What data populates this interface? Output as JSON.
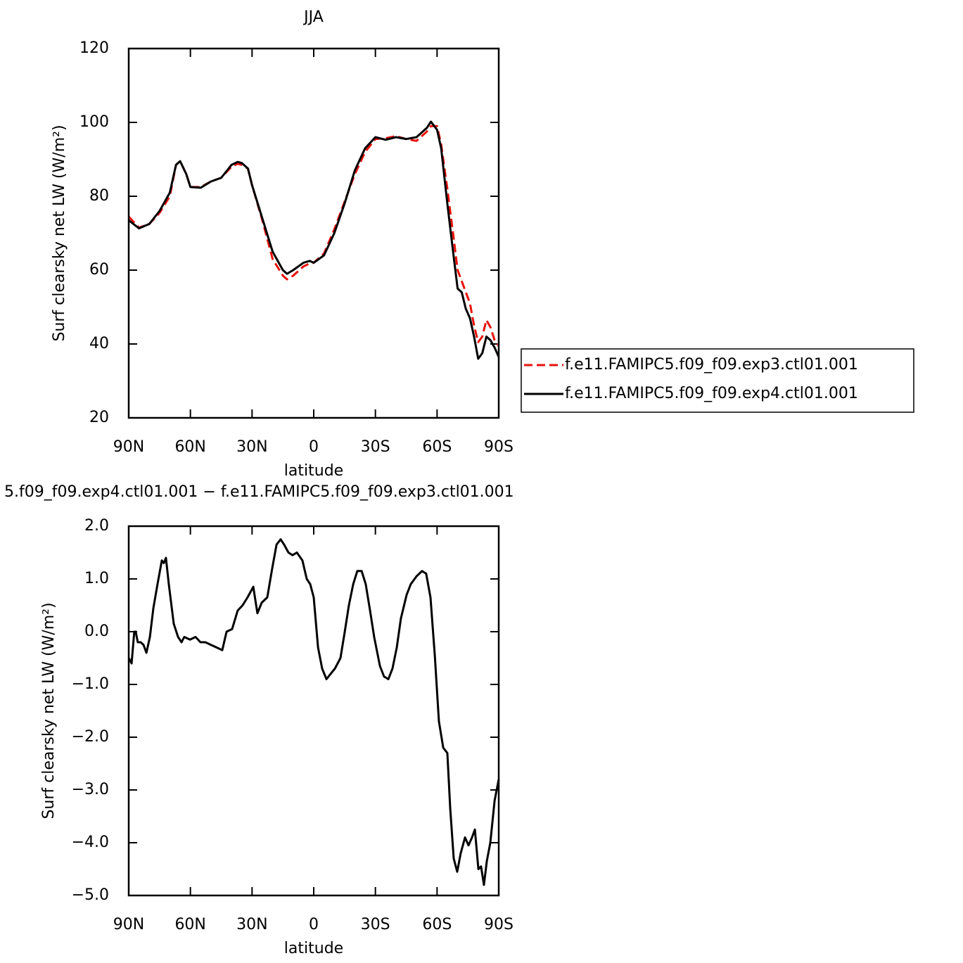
{
  "chart_data": [
    {
      "type": "line",
      "title": "JJA",
      "xlabel": "latitude",
      "ylabel": "Surf clearsky net LW (W/m²)",
      "x": [
        90,
        85,
        80,
        75,
        70,
        67,
        65,
        62,
        60,
        55,
        50,
        45,
        40,
        37,
        35,
        32,
        30,
        25,
        20,
        15,
        13,
        10,
        5,
        2,
        0,
        -5,
        -10,
        -15,
        -20,
        -25,
        -30,
        -35,
        -40,
        -45,
        -50,
        -55,
        -57,
        -60,
        -62,
        -65,
        -68,
        -70,
        -72,
        -74,
        -76,
        -78,
        -80,
        -82,
        -84,
        -86,
        -88,
        -90
      ],
      "series": [
        {
          "name": "f.e11.FAMIPC5.f09_f09.exp3.ctl01.001",
          "color": "#e8120c",
          "dashed": true,
          "values": [
            74.5,
            71.5,
            72.5,
            75.5,
            80,
            88.5,
            89.5,
            86,
            82.5,
            82.5,
            84,
            85,
            88,
            88.8,
            88.5,
            87.5,
            83,
            73.5,
            63,
            58.5,
            57.5,
            58.5,
            61,
            61.8,
            62,
            64.5,
            71,
            78.5,
            86,
            92,
            95.5,
            95.7,
            96.3,
            95.5,
            95,
            97.5,
            99,
            99,
            94,
            82,
            69,
            60,
            57,
            54,
            51,
            45,
            40.5,
            42,
            46.5,
            44.5,
            41,
            39.5
          ]
        },
        {
          "name": "f.e11.FAMIPC5.f09_f09.exp4.ctl01.001",
          "color": "#000000",
          "dashed": false,
          "values": [
            73.5,
            71.3,
            72.5,
            76,
            81,
            88.5,
            89.5,
            86,
            82.5,
            82.3,
            84,
            85,
            88.5,
            89.3,
            89,
            87.5,
            83,
            74,
            65,
            60,
            59,
            60,
            62,
            62.5,
            62,
            64,
            70,
            78,
            87,
            93,
            96,
            95.3,
            96,
            95.5,
            96,
            98.5,
            100.2,
            98,
            93,
            78,
            64,
            55,
            54,
            49.5,
            47,
            42,
            36,
            37.5,
            42,
            41,
            39,
            36.5
          ]
        }
      ],
      "xlim": [
        90,
        -90
      ],
      "xticks": [
        {
          "value": 90,
          "label": "90N"
        },
        {
          "value": 60,
          "label": "60N"
        },
        {
          "value": 30,
          "label": "30N"
        },
        0,
        {
          "value": -30,
          "label": "30S"
        },
        {
          "value": -60,
          "label": "60S"
        },
        {
          "value": -90,
          "label": "90S"
        }
      ],
      "ylim": [
        20,
        120
      ],
      "yticks": [
        20,
        40,
        60,
        80,
        100,
        120
      ],
      "legend": "right"
    },
    {
      "type": "line",
      "title": "5.f09_f09.exp4.ctl01.001 − f.e11.FAMIPC5.f09_f09.exp3.ctl01.001",
      "xlabel": "latitude",
      "ylabel": "Surf clearsky net LW (W/m²)",
      "x": [
        90,
        88.6,
        87.3,
        86.6,
        85.6,
        84.2,
        82.8,
        81.4,
        79.7,
        78,
        76,
        73.9,
        72.9,
        71.9,
        70.5,
        68.1,
        66,
        64.3,
        63,
        60.2,
        57.5,
        55.1,
        52.7,
        50,
        47.2,
        44.5,
        42.4,
        39.7,
        37,
        34.6,
        32.2,
        29.4,
        27.4,
        25.3,
        22.6,
        20.2,
        18.1,
        16.1,
        14.4,
        12.3,
        10.3,
        8.2,
        5.5,
        3.4,
        1.7,
        0,
        -2.1,
        -4.1,
        -6.2,
        -8.2,
        -10.3,
        -13,
        -15.1,
        -17.1,
        -19.2,
        -21.2,
        -23.3,
        -25.3,
        -27.4,
        -29.4,
        -32.2,
        -34.2,
        -36.3,
        -38.3,
        -40.4,
        -42.4,
        -45.2,
        -47.2,
        -50,
        -52.7,
        -54.7,
        -56.8,
        -58.9,
        -60.9,
        -63,
        -65,
        -66.4,
        -68.1,
        -69.8,
        -71.5,
        -73.6,
        -75.3,
        -77,
        -78.4,
        -80.1,
        -81.4,
        -82.8,
        -84.2,
        -85.9,
        -88,
        -90
      ],
      "series": [
        {
          "color": "#000000",
          "dashed": false,
          "values": [
            -0.5,
            -0.6,
            0,
            0,
            -0.2,
            -0.2,
            -0.25,
            -0.4,
            -0.1,
            0.45,
            0.9,
            1.35,
            1.3,
            1.4,
            0.9,
            0.15,
            -0.1,
            -0.2,
            -0.1,
            -0.15,
            -0.1,
            -0.2,
            -0.2,
            -0.25,
            -0.3,
            -0.35,
            0,
            0.05,
            0.4,
            0.5,
            0.65,
            0.85,
            0.35,
            0.55,
            0.65,
            1.2,
            1.65,
            1.75,
            1.65,
            1.5,
            1.45,
            1.5,
            1.35,
            1,
            0.9,
            0.65,
            -0.3,
            -0.7,
            -0.9,
            -0.8,
            -0.7,
            -0.5,
            0,
            0.5,
            0.9,
            1.15,
            1.15,
            0.9,
            0.4,
            -0.1,
            -0.65,
            -0.85,
            -0.9,
            -0.7,
            -0.3,
            0.25,
            0.7,
            0.9,
            1.05,
            1.15,
            1.1,
            0.65,
            -0.45,
            -1.7,
            -2.2,
            -2.3,
            -3.35,
            -4.3,
            -4.55,
            -4.2,
            -3.9,
            -4.05,
            -3.9,
            -3.75,
            -4.5,
            -4.45,
            -4.8,
            -4.35,
            -4,
            -3.2,
            -2.8
          ]
        }
      ],
      "xlim": [
        90,
        -90
      ],
      "xticks": [
        {
          "value": 90,
          "label": "90N"
        },
        {
          "value": 60,
          "label": "60N"
        },
        {
          "value": 30,
          "label": "30N"
        },
        0,
        {
          "value": -30,
          "label": "30S"
        },
        {
          "value": -60,
          "label": "60S"
        },
        {
          "value": -90,
          "label": "90S"
        }
      ],
      "ylim": [
        -5,
        2
      ],
      "yticks": [
        {
          "value": -5,
          "label": "−5.0"
        },
        {
          "value": -4,
          "label": "−4.0"
        },
        {
          "value": -3,
          "label": "−3.0"
        },
        {
          "value": -2,
          "label": "−2.0"
        },
        {
          "value": -1,
          "label": "−1.0"
        },
        {
          "value": 0,
          "label": "0.0"
        },
        {
          "value": 1,
          "label": "1.0"
        },
        {
          "value": 2,
          "label": "2.0"
        }
      ]
    }
  ]
}
